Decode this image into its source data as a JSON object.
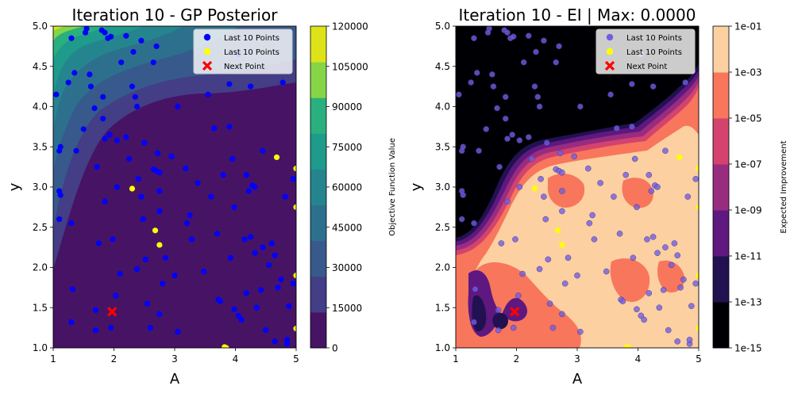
{
  "chart_data": [
    {
      "type": "contour",
      "title": "Iteration 10 - GP Posterior",
      "xlabel": "A",
      "ylabel": "y",
      "xlim": [
        1,
        5
      ],
      "ylim": [
        1.0,
        5.0
      ],
      "x_ticks": [
        "1",
        "2",
        "3",
        "4",
        "5"
      ],
      "y_ticks": [
        "1.0",
        "1.5",
        "2.0",
        "2.5",
        "3.0",
        "3.5",
        "4.0",
        "4.5",
        "5.0"
      ],
      "colorbar": {
        "label": "Objective Function Value",
        "levels": [
          0,
          15000,
          30000,
          45000,
          60000,
          75000,
          90000,
          105000,
          120000
        ],
        "tick_labels": [
          "0",
          "15000",
          "30000",
          "45000",
          "60000",
          "75000",
          "90000",
          "105000",
          "120000"
        ],
        "colors": [
          "#471365",
          "#433e85",
          "#38598c",
          "#2d708e",
          "#25858e",
          "#1e9b8a",
          "#2ab07f",
          "#86d549",
          "#dde318"
        ]
      },
      "legend": {
        "placement": "upper right",
        "entries": [
          {
            "label": "Last 10 Points",
            "marker": "circle",
            "color": "#0000ff"
          },
          {
            "label": "Last 10 Points",
            "marker": "circle",
            "color": "#ffff00"
          },
          {
            "label": "Next Point",
            "marker": "x",
            "color": "#ff0000"
          }
        ]
      },
      "series": [
        {
          "name": "Last 10 Points",
          "color": "#0000ff",
          "points": [
            [
              1.05,
              4.15
            ],
            [
              1.1,
              3.45
            ],
            [
              1.12,
              3.5
            ],
            [
              1.1,
              2.95
            ],
            [
              1.12,
              2.9
            ],
            [
              1.1,
              2.6
            ],
            [
              1.3,
              4.85
            ],
            [
              1.35,
              4.42
            ],
            [
              1.25,
              4.3
            ],
            [
              1.38,
              3.45
            ],
            [
              1.3,
              2.55
            ],
            [
              1.32,
              1.73
            ],
            [
              1.3,
              1.32
            ],
            [
              1.55,
              4.97
            ],
            [
              1.53,
              4.92
            ],
            [
              1.6,
              4.4
            ],
            [
              1.62,
              4.25
            ],
            [
              1.5,
              3.72
            ],
            [
              1.68,
              3.98
            ],
            [
              1.72,
              3.25
            ],
            [
              1.75,
              2.3
            ],
            [
              1.7,
              1.47
            ],
            [
              1.7,
              1.22
            ],
            [
              1.8,
              4.95
            ],
            [
              1.85,
              4.92
            ],
            [
              1.9,
              4.85
            ],
            [
              1.95,
              4.87
            ],
            [
              1.82,
              4.12
            ],
            [
              1.82,
              3.85
            ],
            [
              1.85,
              3.6
            ],
            [
              1.93,
              3.65
            ],
            [
              1.85,
              2.82
            ],
            [
              1.98,
              2.35
            ],
            [
              1.95,
              1.25
            ],
            [
              2.03,
              1.65
            ],
            [
              2.1,
              1.92
            ],
            [
              2.05,
              3.58
            ],
            [
              2.05,
              3.0
            ],
            [
              2.2,
              3.62
            ],
            [
              2.25,
              3.35
            ],
            [
              2.3,
              4.25
            ],
            [
              2.35,
              4.12
            ],
            [
              2.38,
              4.0
            ],
            [
              2.4,
              3.1
            ],
            [
              2.45,
              2.88
            ],
            [
              2.48,
              2.6
            ],
            [
              2.38,
              1.98
            ],
            [
              2.52,
              2.1
            ],
            [
              2.5,
              3.55
            ],
            [
              2.55,
              1.55
            ],
            [
              2.6,
              1.25
            ],
            [
              2.65,
              3.22
            ],
            [
              2.7,
              3.2
            ],
            [
              2.72,
              3.42
            ],
            [
              2.75,
              2.95
            ],
            [
              2.75,
              2.7
            ],
            [
              2.75,
              1.42
            ],
            [
              2.8,
              1.8
            ],
            [
              2.85,
              2.12
            ],
            [
              2.95,
              3.38
            ],
            [
              3.0,
              1.9
            ],
            [
              2.7,
              4.75
            ],
            [
              2.65,
              4.55
            ],
            [
              2.75,
              3.18
            ],
            [
              3.05,
              4.0
            ],
            [
              3.05,
              1.2
            ],
            [
              3.18,
              3.23
            ],
            [
              3.2,
              2.55
            ],
            [
              3.25,
              2.65
            ],
            [
              3.28,
              2.35
            ],
            [
              3.38,
              3.05
            ],
            [
              3.48,
              1.95
            ],
            [
              3.6,
              2.88
            ],
            [
              3.65,
              3.73
            ],
            [
              3.7,
              2.42
            ],
            [
              3.72,
              1.6
            ],
            [
              3.75,
              1.58
            ],
            [
              3.8,
              3.15
            ],
            [
              3.9,
              3.75
            ],
            [
              3.92,
              2.12
            ],
            [
              3.95,
              3.35
            ],
            [
              3.98,
              2.75
            ],
            [
              3.98,
              1.48
            ],
            [
              4.05,
              4.65
            ],
            [
              4.05,
              1.4
            ],
            [
              4.1,
              1.35
            ],
            [
              4.15,
              2.35
            ],
            [
              4.18,
              1.68
            ],
            [
              4.22,
              2.95
            ],
            [
              4.28,
              3.02
            ],
            [
              4.32,
              3.0
            ],
            [
              4.25,
              2.38
            ],
            [
              4.32,
              2.18
            ],
            [
              4.35,
              1.5
            ],
            [
              4.42,
              1.72
            ],
            [
              4.45,
              3.45
            ],
            [
              4.45,
              2.25
            ],
            [
              4.5,
              1.22
            ],
            [
              4.55,
              2.03
            ],
            [
              4.6,
              2.3
            ],
            [
              4.65,
              2.15
            ],
            [
              4.65,
              1.08
            ],
            [
              4.7,
              1.75
            ],
            [
              4.75,
              1.85
            ],
            [
              4.78,
              4.3
            ],
            [
              4.82,
              2.88
            ],
            [
              4.85,
              1.05
            ],
            [
              4.85,
              1.1
            ],
            [
              4.88,
              1.52
            ],
            [
              4.95,
              1.8
            ],
            [
              4.95,
              3.1
            ],
            [
              4.25,
              4.25
            ],
            [
              4.18,
              3.15
            ],
            [
              3.9,
              4.28
            ],
            [
              3.55,
              4.15
            ],
            [
              2.12,
              4.55
            ],
            [
              2.32,
              4.68
            ],
            [
              2.45,
              4.82
            ],
            [
              2.2,
              4.88
            ]
          ]
        },
        {
          "name": "Last 10 Points",
          "color": "#ffff00",
          "points": [
            [
              2.3,
              2.98
            ],
            [
              2.68,
              2.46
            ],
            [
              2.75,
              2.28
            ],
            [
              4.68,
              3.37
            ],
            [
              5.0,
              3.23
            ],
            [
              5.0,
              2.75
            ],
            [
              5.0,
              1.9
            ],
            [
              5.0,
              1.24
            ],
            [
              3.82,
              1.01
            ],
            [
              3.85,
              1.0
            ]
          ]
        },
        {
          "name": "Next Point",
          "color": "#ff0000",
          "points": [
            [
              1.97,
              1.45
            ]
          ]
        }
      ]
    },
    {
      "type": "contour",
      "title": "Iteration 10 - EI | Max: 0.0000",
      "xlabel": "A",
      "ylabel": "y",
      "xlim": [
        1,
        5
      ],
      "ylim": [
        1.0,
        5.0
      ],
      "x_ticks": [
        "1",
        "2",
        "3",
        "4",
        "5"
      ],
      "y_ticks": [
        "1.0",
        "1.5",
        "2.0",
        "2.5",
        "3.0",
        "3.5",
        "4.0",
        "4.5",
        "5.0"
      ],
      "log_scale": true,
      "colorbar": {
        "label": "Expected Improvement",
        "levels": [
          "1e-15",
          "1e-13",
          "1e-11",
          "1e-09",
          "1e-07",
          "1e-05",
          "1e-03",
          "1e-01"
        ],
        "tick_labels": [
          "1e-15",
          "1e-13",
          "1e-11",
          "1e-09",
          "1e-07",
          "1e-05",
          "1e-03",
          "1e-01"
        ],
        "colors": [
          "#000004",
          "#221150",
          "#5f187f",
          "#982d80",
          "#d3436e",
          "#f8765c",
          "#fcd0a1"
        ]
      },
      "legend": {
        "placement": "upper right",
        "entries": [
          {
            "label": "Last 10 Points",
            "marker": "circle",
            "color": "#6f5fe0"
          },
          {
            "label": "Last 10 Points",
            "marker": "circle",
            "color": "#ffff00"
          },
          {
            "label": "Next Point",
            "marker": "x",
            "color": "#ff0000"
          }
        ]
      }
    }
  ]
}
